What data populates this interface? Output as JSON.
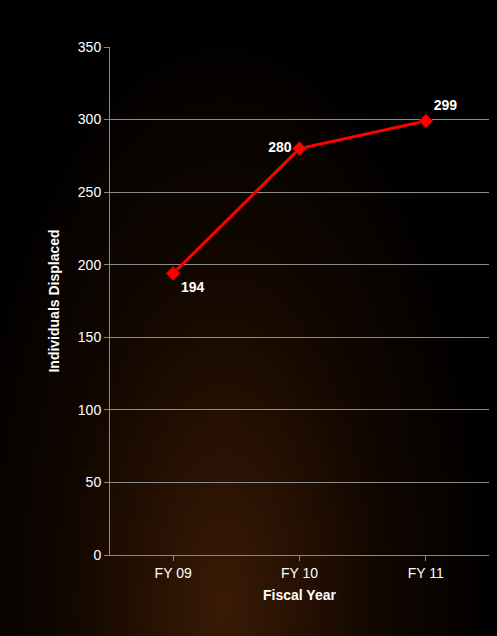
{
  "chart_data": {
    "type": "line",
    "categories": [
      "FY 09",
      "FY 10",
      "FY 11"
    ],
    "values": [
      194,
      280,
      299
    ],
    "color": "#ff0000",
    "marker": "diamond",
    "xlabel": "Fiscal Year",
    "ylabel": "Individuals Displaced",
    "ylim": [
      0,
      350
    ],
    "yticks": [
      0,
      50,
      100,
      150,
      200,
      250,
      300,
      350
    ],
    "grid": true,
    "data_labels": true
  }
}
